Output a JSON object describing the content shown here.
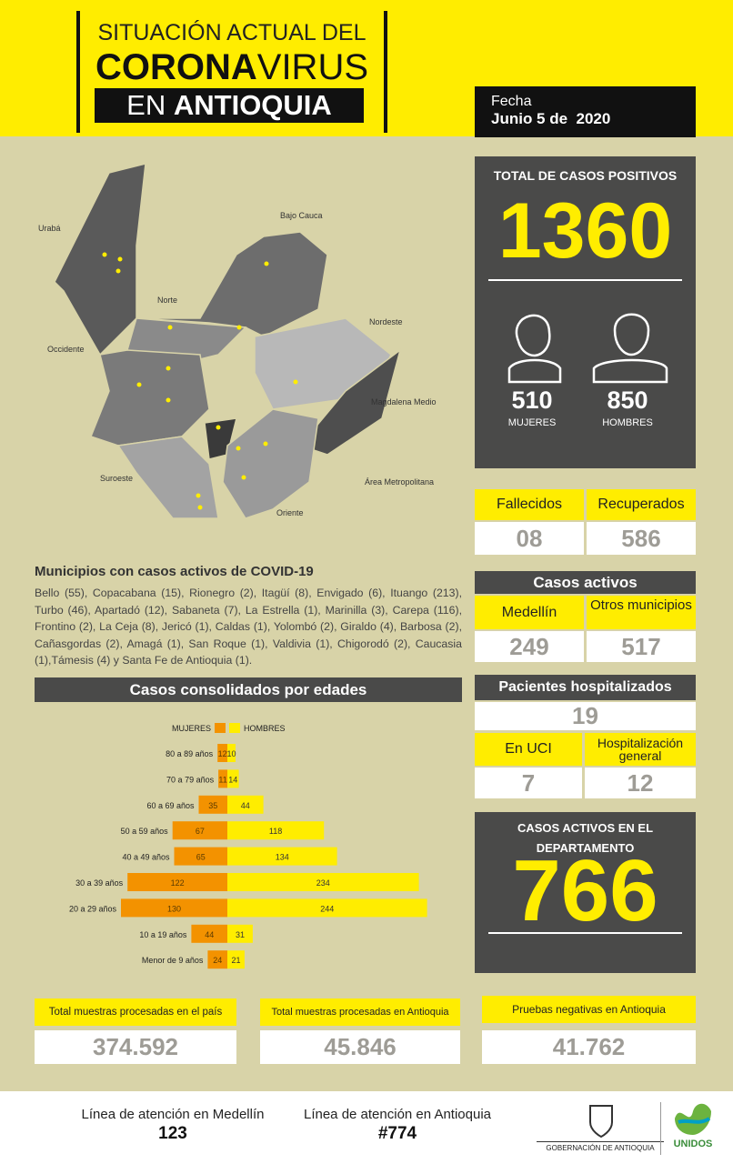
{
  "header": {
    "title_line1": "SITUACIÓN ACTUAL DEL",
    "title_bold": "CORONA",
    "title_light": "VIRUS",
    "title_en": "EN",
    "title_region": "ANTIOQUIA",
    "date_label": "Fecha",
    "date": "Junio 5 de  2020"
  },
  "map": {
    "regions": [
      "Urabá",
      "Bajo Cauca",
      "Norte",
      "Nordeste",
      "Occidente",
      "Magdalena Medio",
      "Suroeste",
      "Área Metropolitana",
      "Oriente"
    ]
  },
  "totals": {
    "title": "TOTAL DE CASOS POSITIVOS",
    "value": "1360",
    "women_value": "510",
    "women_label": "MUJERES",
    "men_value": "850",
    "men_label": "HOMBRES"
  },
  "outcomes": {
    "deaths_label": "Fallecidos",
    "recovered_label": "Recuperados",
    "deaths_value": "08",
    "recovered_value": "586"
  },
  "municipios": {
    "title": "Municipios con casos activos de COVID-19",
    "text": "Bello (55), Copacabana (15), Rionegro (2), Itagüí (8), Envigado (6), Ituango (213), Turbo (46), Apartadó (12), Sabaneta (7), La Estrella (1), Marinilla (3), Carepa (116), Frontino (2), La Ceja (8), Jericó (1), Caldas (1), Yolombó (2), Giraldo (4), Barbosa (2), Cañasgordas (2), Amagá (1), San Roque (1), Valdivia (1), Chigorodó (2), Caucasia (1),Támesis (4) y Santa Fe de Antioquia (1)."
  },
  "active": {
    "title": "Casos activos",
    "medellin_label": "Medellín",
    "others_label": "Otros municipios",
    "medellin_value": "249",
    "others_value": "517"
  },
  "hospital": {
    "title": "Pacientes hospitalizados",
    "total": "19",
    "icu_label": "En UCI",
    "general_label": "Hospitalización general",
    "icu_value": "7",
    "general_value": "12"
  },
  "department": {
    "title": "CASOS ACTIVOS EN EL DEPARTAMENTO",
    "value": "766"
  },
  "samples": {
    "country_label": "Total muestras procesadas en el país",
    "country_value": "374.592",
    "antioquia_label": "Total muestras procesadas en Antioquia",
    "antioquia_value": "45.846",
    "negative_label": "Pruebas negativas en Antioquia",
    "negative_value": "41.762"
  },
  "footer": {
    "medellin_label": "Línea de atención en Medellín",
    "medellin_number": "123",
    "antioquia_label": "Línea de atención en Antioquia",
    "antioquia_number": "#774",
    "government": "GOBERNACIÓN DE ANTIOQUIA",
    "brand": "UNIDOS"
  },
  "chart_data": {
    "type": "butterfly",
    "title": "Casos consolidados por edades",
    "categories": [
      "80 a 89 años",
      "70 a 79 años",
      "60 a 69 años",
      "50 a 59 años",
      "40 a 49 años",
      "30 a 39 años",
      "20 a 29 años",
      "10 a 19 años",
      "Menor de 9 años"
    ],
    "series": [
      {
        "name": "MUJERES",
        "color": "#f39200",
        "values": [
          12,
          11,
          35,
          67,
          65,
          122,
          130,
          44,
          24
        ]
      },
      {
        "name": "HOMBRES",
        "color": "#ffed00",
        "values": [
          10,
          14,
          44,
          118,
          134,
          234,
          244,
          31,
          21
        ]
      }
    ]
  }
}
